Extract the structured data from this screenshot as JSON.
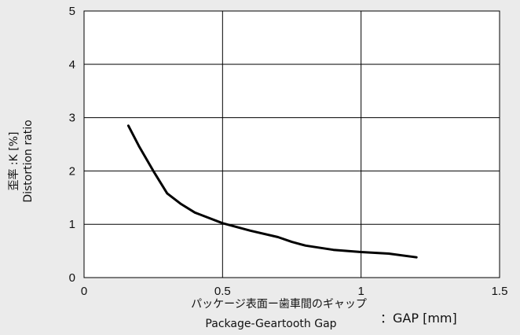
{
  "chart_data": {
    "type": "line",
    "xlabel": "パッケージ表面ー歯車間のギャップ",
    "xlabel_en": "Package-Geartooth Gap",
    "xlabel_unit": "：GAP [mm]",
    "ylabel": "歪率 :K [%]",
    "ylabel_en": "Distortion ratio",
    "xlim": [
      0,
      1.5
    ],
    "ylim": [
      0,
      5
    ],
    "x_ticks": [
      "0",
      "0.5",
      "1",
      "1.5"
    ],
    "y_ticks": [
      "0",
      "1",
      "2",
      "3",
      "4",
      "5"
    ],
    "grid": true,
    "series": [
      {
        "x": [
          0.16,
          0.2,
          0.25,
          0.3,
          0.35,
          0.4,
          0.5,
          0.6,
          0.7,
          0.75,
          0.8,
          0.9,
          1.0,
          1.1,
          1.2
        ],
        "values": [
          2.85,
          2.45,
          2.0,
          1.58,
          1.38,
          1.22,
          1.02,
          0.88,
          0.76,
          0.67,
          0.6,
          0.52,
          0.48,
          0.45,
          0.38
        ]
      }
    ],
    "colors": {
      "line": "#000000",
      "grid": "#000000",
      "plot_bg": "#ffffff",
      "page_bg": "#ebebeb"
    }
  }
}
